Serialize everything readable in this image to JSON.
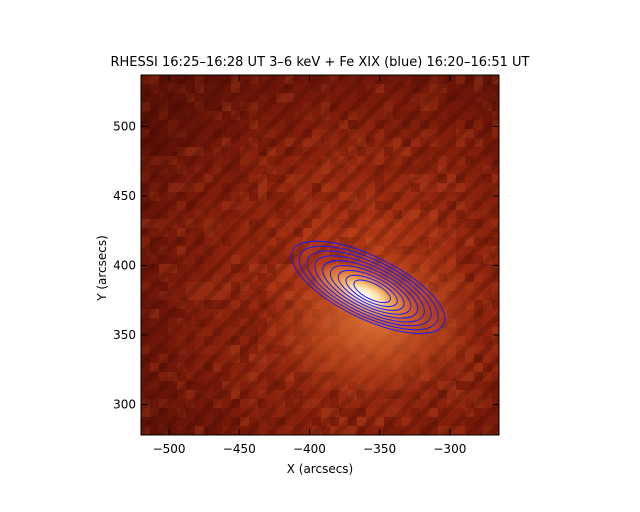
{
  "chart_data": {
    "type": "heatmap",
    "title": "RHESSI 16:25–16:28 UT 3–6 keV + Fe XIX (blue) 16:20–16:51 UT",
    "xlabel": "X (arcsecs)",
    "ylabel": "Y (arcsecs)",
    "xlim": [
      -520,
      -265
    ],
    "ylim": [
      278,
      537
    ],
    "x_ticks": [
      {
        "value": -500,
        "label": "−500"
      },
      {
        "value": -450,
        "label": "−450"
      },
      {
        "value": -400,
        "label": "−400"
      },
      {
        "value": -350,
        "label": "−350"
      },
      {
        "value": -300,
        "label": "−300"
      }
    ],
    "y_ticks": [
      {
        "value": 300,
        "label": "300"
      },
      {
        "value": 350,
        "label": "350"
      },
      {
        "value": 400,
        "label": "400"
      },
      {
        "value": 450,
        "label": "450"
      },
      {
        "value": 500,
        "label": "500"
      }
    ],
    "colormap": "red-temperature",
    "contour_color": "#1a1aff",
    "grid": false,
    "legend": "none",
    "peak_location": {
      "x": -355,
      "y": 381
    },
    "contour_levels": 9
  }
}
